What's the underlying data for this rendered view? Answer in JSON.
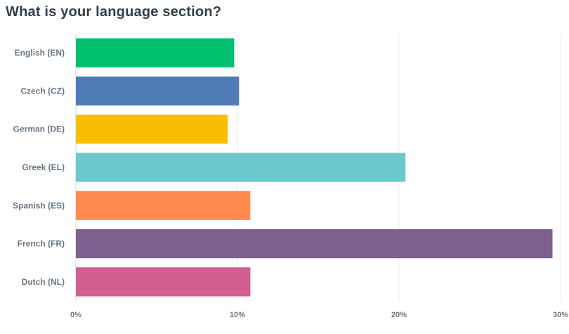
{
  "chart_data": {
    "type": "bar",
    "orientation": "horizontal",
    "title": "What is your language section?",
    "categories": [
      "English (EN)",
      "Czech (CZ)",
      "German (DE)",
      "Greek (EL)",
      "Spanish (ES)",
      "French (FR)",
      "Dutch (NL)"
    ],
    "values": [
      9.8,
      10.1,
      9.4,
      20.4,
      10.8,
      29.5,
      10.8
    ],
    "colors": [
      "#00bf6f",
      "#507cb6",
      "#f9be00",
      "#6bc8cd",
      "#ff8b4f",
      "#7f5f90",
      "#d25f90"
    ],
    "xlim": [
      0,
      30
    ],
    "xticks": [
      0,
      10,
      20,
      30
    ],
    "xtick_labels": [
      "0%",
      "10%",
      "20%",
      "30%"
    ],
    "xlabel": "",
    "ylabel": "",
    "grid": true
  }
}
